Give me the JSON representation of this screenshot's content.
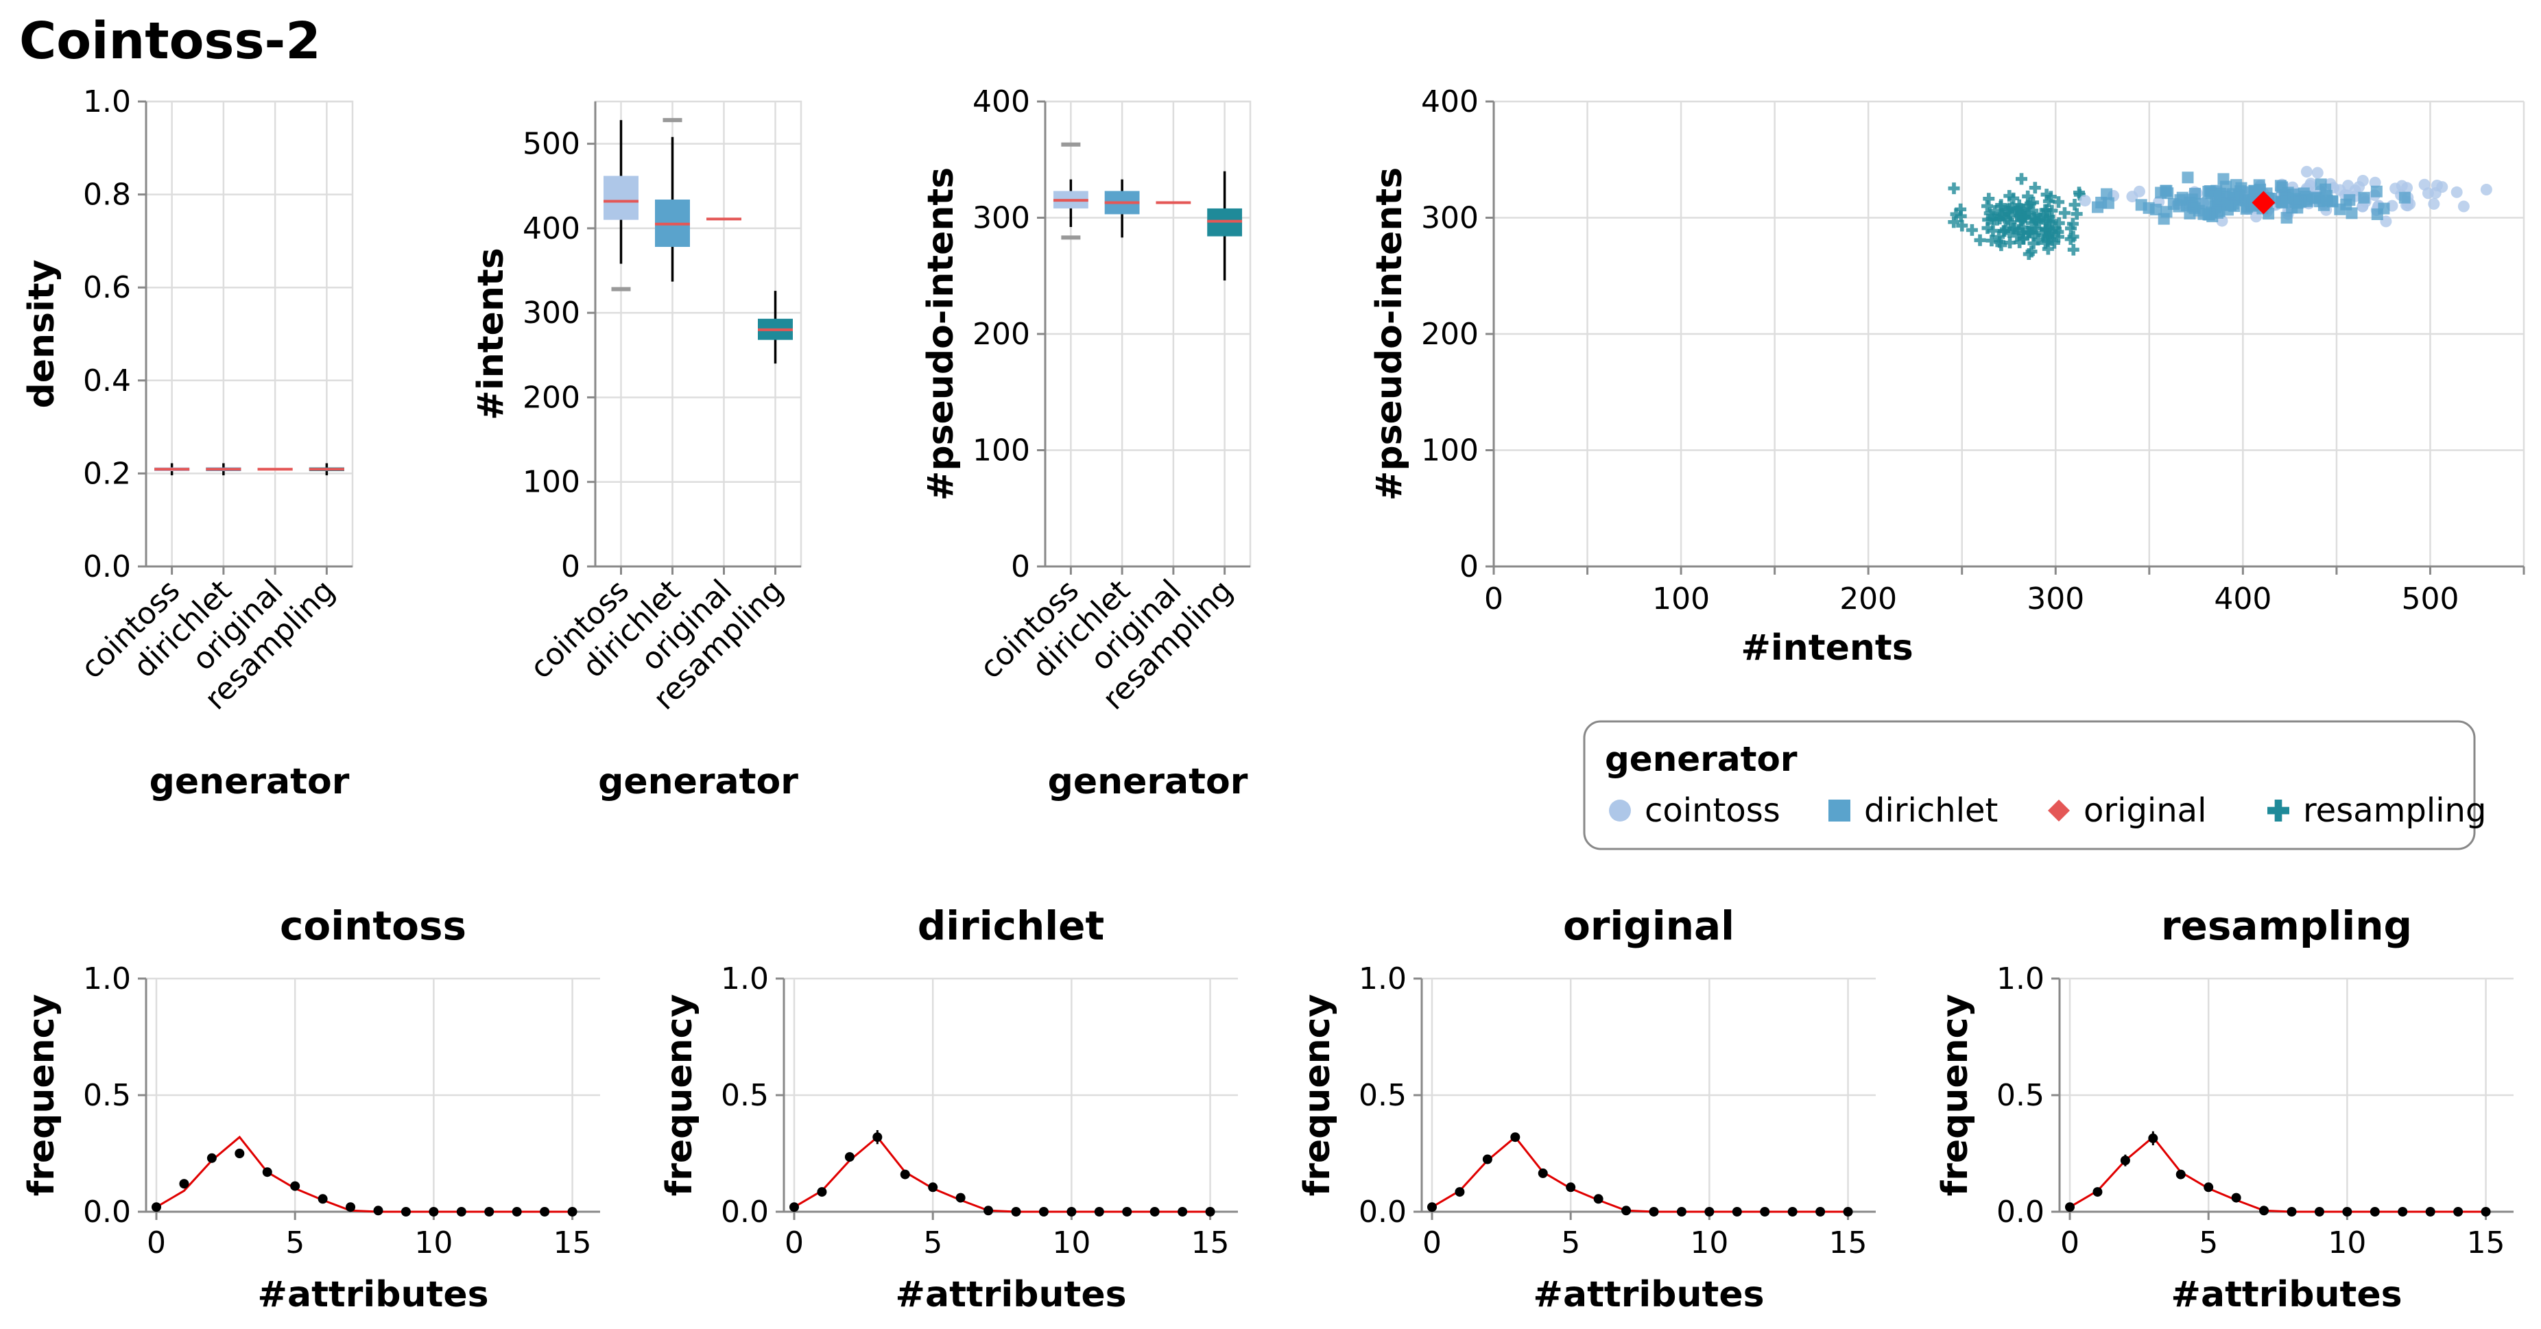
{
  "title": "Cointoss-2",
  "colors": {
    "cointoss": "#aec7e8",
    "dirichlet": "#5aa3cc",
    "original": "#e45756",
    "resampling": "#1f8a99",
    "median": "#e45756",
    "line": "#e00000",
    "point": "#000000"
  },
  "chart_data": [
    {
      "id": "density",
      "type": "boxplot",
      "xlabel": "generator",
      "ylabel": "density",
      "ylim": [
        0,
        1
      ],
      "yticks": [
        "0.0",
        "0.2",
        "0.4",
        "0.6",
        "0.8",
        "1.0"
      ],
      "ytick_values": [
        0,
        0.2,
        0.4,
        0.6,
        0.8,
        1.0
      ],
      "categories": [
        "cointoss",
        "dirichlet",
        "original",
        "resampling"
      ],
      "boxes": [
        {
          "category": "cointoss",
          "q1": 0.205,
          "median": 0.209,
          "q3": 0.213,
          "whisker_low": 0.196,
          "whisker_high": 0.222
        },
        {
          "category": "dirichlet",
          "q1": 0.205,
          "median": 0.209,
          "q3": 0.213,
          "whisker_low": 0.196,
          "whisker_high": 0.222
        },
        {
          "category": "original",
          "q1": 0.209,
          "median": 0.209,
          "q3": 0.209,
          "whisker_low": 0.209,
          "whisker_high": 0.209
        },
        {
          "category": "resampling",
          "q1": 0.205,
          "median": 0.209,
          "q3": 0.213,
          "whisker_low": 0.196,
          "whisker_high": 0.222
        }
      ]
    },
    {
      "id": "intents",
      "type": "boxplot",
      "xlabel": "generator",
      "ylabel": "#intents",
      "ylim": [
        0,
        550
      ],
      "yticks": [
        "0",
        "100",
        "200",
        "300",
        "400",
        "500"
      ],
      "ytick_values": [
        0,
        100,
        200,
        300,
        400,
        500
      ],
      "categories": [
        "cointoss",
        "dirichlet",
        "original",
        "resampling"
      ],
      "boxes": [
        {
          "category": "cointoss",
          "q1": 410,
          "median": 432,
          "q3": 462,
          "whisker_low": 358,
          "whisker_high": 528,
          "outliers": [
            328
          ]
        },
        {
          "category": "dirichlet",
          "q1": 378,
          "median": 405,
          "q3": 434,
          "whisker_low": 337,
          "whisker_high": 508,
          "outliers": [
            528
          ]
        },
        {
          "category": "original",
          "q1": 411,
          "median": 411,
          "q3": 411,
          "whisker_low": 411,
          "whisker_high": 411
        },
        {
          "category": "resampling",
          "q1": 268,
          "median": 280,
          "q3": 293,
          "whisker_low": 240,
          "whisker_high": 326
        }
      ]
    },
    {
      "id": "pseudo_intents",
      "type": "boxplot",
      "xlabel": "generator",
      "ylabel": "#pseudo-intents",
      "ylim": [
        0,
        400
      ],
      "yticks": [
        "0",
        "100",
        "200",
        "300",
        "400"
      ],
      "ytick_values": [
        0,
        100,
        200,
        300,
        400
      ],
      "categories": [
        "cointoss",
        "dirichlet",
        "original",
        "resampling"
      ],
      "boxes": [
        {
          "category": "cointoss",
          "q1": 308,
          "median": 315,
          "q3": 323,
          "whisker_low": 292,
          "whisker_high": 333,
          "outliers": [
            363,
            283
          ]
        },
        {
          "category": "dirichlet",
          "q1": 303,
          "median": 313,
          "q3": 323,
          "whisker_low": 283,
          "whisker_high": 333
        },
        {
          "category": "original",
          "q1": 313,
          "median": 313,
          "q3": 313,
          "whisker_low": 313,
          "whisker_high": 313
        },
        {
          "category": "resampling",
          "q1": 284,
          "median": 297,
          "q3": 308,
          "whisker_low": 246,
          "whisker_high": 340
        }
      ]
    },
    {
      "id": "scatter",
      "type": "scatter",
      "xlabel": "#intents",
      "ylabel": "#pseudo-intents",
      "xlim": [
        0,
        550
      ],
      "ylim": [
        0,
        400
      ],
      "xticks": [
        "0",
        "100",
        "200",
        "300",
        "400",
        "500"
      ],
      "xtick_values": [
        0,
        100,
        200,
        300,
        400,
        500
      ],
      "yticks": [
        "0",
        "100",
        "200",
        "300",
        "400"
      ],
      "ytick_values": [
        0,
        100,
        200,
        300,
        400
      ],
      "series": [
        {
          "name": "resampling",
          "shape": "cross",
          "center": [
            282,
            298
          ],
          "spread": [
            15,
            14
          ],
          "count": 130
        },
        {
          "name": "cointoss",
          "shape": "circle",
          "center": [
            440,
            318
          ],
          "spread": [
            44,
            8
          ],
          "count": 110
        },
        {
          "name": "dirichlet",
          "shape": "square",
          "center": [
            405,
            315
          ],
          "spread": [
            32,
            7
          ],
          "count": 140
        },
        {
          "name": "original",
          "shape": "diamond",
          "points": [
            [
              411,
              313
            ]
          ]
        }
      ]
    },
    {
      "id": "freq_cointoss",
      "type": "line",
      "title": "cointoss",
      "xlabel": "#attributes",
      "ylabel": "frequency",
      "xlim": [
        0,
        16
      ],
      "ylim": [
        0,
        1
      ],
      "xticks": [
        "0",
        "5",
        "10",
        "15"
      ],
      "xtick_values": [
        0,
        5,
        10,
        15
      ],
      "yticks": [
        "0.0",
        "0.5",
        "1.0"
      ],
      "ytick_values": [
        0,
        0.5,
        1.0
      ],
      "x": [
        0,
        1,
        2,
        3,
        4,
        5,
        6,
        7,
        8,
        9,
        10,
        11,
        12,
        13,
        14,
        15
      ],
      "line_values": [
        0.02,
        0.09,
        0.22,
        0.32,
        0.17,
        0.1,
        0.05,
        0.005,
        0,
        0,
        0,
        0,
        0,
        0,
        0,
        0
      ],
      "point_values": [
        0.02,
        0.12,
        0.23,
        0.25,
        0.17,
        0.11,
        0.055,
        0.02,
        0.005,
        0,
        0,
        0,
        0,
        0,
        0,
        0
      ],
      "errors": [
        0,
        0.01,
        0.02,
        0.02,
        0.015,
        0.01,
        0.005,
        0,
        0,
        0,
        0,
        0,
        0,
        0,
        0,
        0
      ]
    },
    {
      "id": "freq_dirichlet",
      "type": "line",
      "title": "dirichlet",
      "xlabel": "#attributes",
      "ylabel": "frequency",
      "xlim": [
        0,
        16
      ],
      "ylim": [
        0,
        1
      ],
      "xticks": [
        "0",
        "5",
        "10",
        "15"
      ],
      "xtick_values": [
        0,
        5,
        10,
        15
      ],
      "yticks": [
        "0.0",
        "0.5",
        "1.0"
      ],
      "ytick_values": [
        0,
        0.5,
        1.0
      ],
      "x": [
        0,
        1,
        2,
        3,
        4,
        5,
        6,
        7,
        8,
        9,
        10,
        11,
        12,
        13,
        14,
        15
      ],
      "line_values": [
        0.02,
        0.09,
        0.22,
        0.32,
        0.17,
        0.1,
        0.05,
        0.005,
        0,
        0,
        0,
        0,
        0,
        0,
        0,
        0
      ],
      "point_values": [
        0.02,
        0.085,
        0.235,
        0.32,
        0.16,
        0.105,
        0.06,
        0.005,
        0,
        0,
        0,
        0,
        0,
        0,
        0,
        0
      ],
      "errors": [
        0,
        0.01,
        0.02,
        0.03,
        0.015,
        0.01,
        0.005,
        0,
        0,
        0,
        0,
        0,
        0,
        0,
        0,
        0
      ]
    },
    {
      "id": "freq_original",
      "type": "line",
      "title": "original",
      "xlabel": "#attributes",
      "ylabel": "frequency",
      "xlim": [
        0,
        16
      ],
      "ylim": [
        0,
        1
      ],
      "xticks": [
        "0",
        "5",
        "10",
        "15"
      ],
      "xtick_values": [
        0,
        5,
        10,
        15
      ],
      "yticks": [
        "0.0",
        "0.5",
        "1.0"
      ],
      "ytick_values": [
        0,
        0.5,
        1.0
      ],
      "x": [
        0,
        1,
        2,
        3,
        4,
        5,
        6,
        7,
        8,
        9,
        10,
        11,
        12,
        13,
        14,
        15
      ],
      "line_values": [
        0.02,
        0.09,
        0.22,
        0.32,
        0.17,
        0.1,
        0.05,
        0.005,
        0,
        0,
        0,
        0,
        0,
        0,
        0,
        0
      ],
      "point_values": [
        0.02,
        0.085,
        0.225,
        0.32,
        0.165,
        0.105,
        0.055,
        0.005,
        0,
        0,
        0,
        0,
        0,
        0,
        0,
        0
      ],
      "errors": [
        0,
        0,
        0,
        0,
        0,
        0,
        0,
        0,
        0,
        0,
        0,
        0,
        0,
        0,
        0,
        0
      ]
    },
    {
      "id": "freq_resampling",
      "type": "line",
      "title": "resampling",
      "xlabel": "#attributes",
      "ylabel": "frequency",
      "xlim": [
        0,
        16
      ],
      "ylim": [
        0,
        1
      ],
      "xticks": [
        "0",
        "5",
        "10",
        "15"
      ],
      "xtick_values": [
        0,
        5,
        10,
        15
      ],
      "yticks": [
        "0.0",
        "0.5",
        "1.0"
      ],
      "ytick_values": [
        0,
        0.5,
        1.0
      ],
      "x": [
        0,
        1,
        2,
        3,
        4,
        5,
        6,
        7,
        8,
        9,
        10,
        11,
        12,
        13,
        14,
        15
      ],
      "line_values": [
        0.02,
        0.09,
        0.22,
        0.32,
        0.17,
        0.1,
        0.05,
        0.005,
        0,
        0,
        0,
        0,
        0,
        0,
        0,
        0
      ],
      "point_values": [
        0.02,
        0.085,
        0.22,
        0.315,
        0.16,
        0.105,
        0.06,
        0.005,
        0,
        0,
        0,
        0,
        0,
        0,
        0,
        0
      ],
      "errors": [
        0,
        0.01,
        0.025,
        0.03,
        0.015,
        0.01,
        0.005,
        0,
        0,
        0,
        0,
        0,
        0,
        0,
        0,
        0
      ]
    }
  ],
  "legend": {
    "title": "generator",
    "entries": [
      {
        "label": "cointoss",
        "shape": "circle",
        "color": "#aec7e8"
      },
      {
        "label": "dirichlet",
        "shape": "square",
        "color": "#5aa3cc"
      },
      {
        "label": "original",
        "shape": "diamond",
        "color": "#e45756"
      },
      {
        "label": "resampling",
        "shape": "cross",
        "color": "#1f8a99"
      }
    ]
  }
}
